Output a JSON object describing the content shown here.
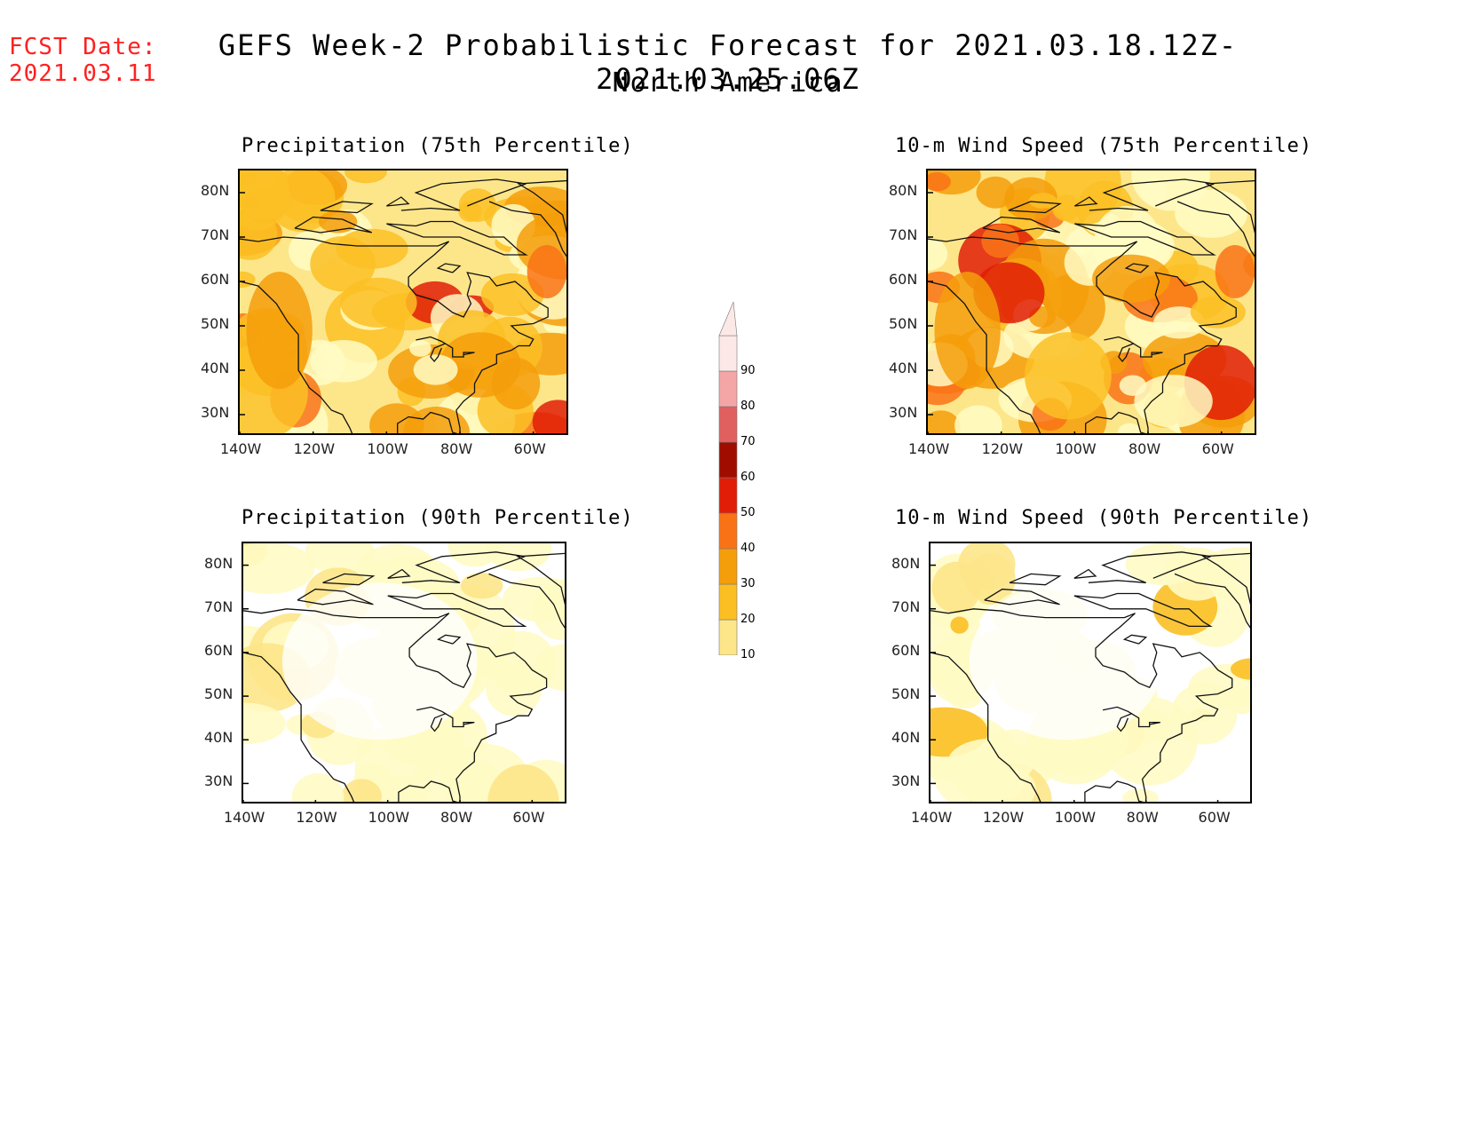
{
  "header": {
    "fcst_label": "FCST Date:",
    "fcst_date": "2021.03.11",
    "title": "GEFS Week-2 Probabilistic Forecast for 2021.03.18.12Z-2021.03.25.06Z",
    "subtitle": "North America"
  },
  "axes": {
    "lat_labels": [
      "80N",
      "70N",
      "60N",
      "50N",
      "40N",
      "30N"
    ],
    "lon_labels": [
      "140W",
      "120W",
      "100W",
      "80W",
      "60W"
    ]
  },
  "panels": [
    {
      "id": "precip75",
      "title": "Precipitation (75th Percentile)",
      "intensity": "high"
    },
    {
      "id": "wind75",
      "title": "10-m Wind Speed (75th Percentile)",
      "intensity": "high"
    },
    {
      "id": "precip90",
      "title": "Precipitation (90th Percentile)",
      "intensity": "low"
    },
    {
      "id": "wind90",
      "title": "10-m Wind Speed (90th Percentile)",
      "intensity": "low"
    }
  ],
  "colorbar": {
    "levels": [
      "10",
      "20",
      "30",
      "40",
      "50",
      "60",
      "70",
      "80",
      "90"
    ],
    "colors": [
      "#fffbc4",
      "#fde68a",
      "#fbbf24",
      "#f59e0b",
      "#f97316",
      "#e11d07",
      "#a00d00",
      "#e06060",
      "#f4a6a6",
      "#fde8e8"
    ]
  }
}
